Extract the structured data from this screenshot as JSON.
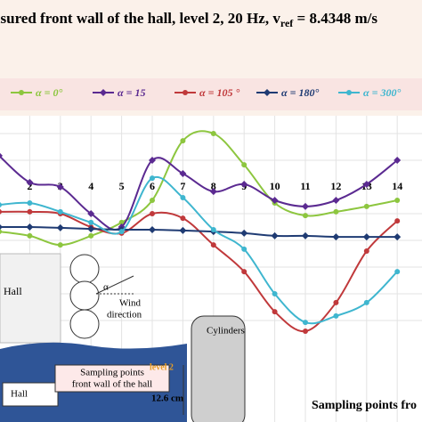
{
  "chart_data": {
    "type": "line",
    "title": "asured front wall of the hall, level 2, 20 Hz, v",
    "title_subscript": "ref",
    "title_end": " = 8.4348 m/s",
    "x_label": "Sampling points fro",
    "categories": [
      null,
      "2",
      "3",
      "4",
      "5",
      "6",
      "7",
      "8",
      "9",
      "10",
      "11",
      "12",
      "13",
      "14"
    ],
    "ylim": [
      0,
      10
    ],
    "grid": true,
    "series": [
      {
        "name": "α = 0°",
        "color": "#8dc63f",
        "marker": "circle",
        "values": [
          4.33,
          4.17,
          3.83,
          4.17,
          4.67,
          5.5,
          7.73,
          8,
          6.83,
          5.4,
          4.93,
          5.07,
          5.27,
          5.5
        ]
      },
      {
        "name": "α = 15",
        "color": "#5b2a91",
        "marker": "diamond",
        "values": [
          7.17,
          6.17,
          6,
          5,
          4.5,
          7,
          6.5,
          5.83,
          6.1,
          5.5,
          5.27,
          5.5,
          6.1,
          7
        ]
      },
      {
        "name": "α = 105 °",
        "color": "#c0393b",
        "marker": "circle",
        "values": [
          5.07,
          5.07,
          5,
          4.5,
          4.27,
          5,
          4.83,
          3.83,
          2.83,
          1.33,
          0.6,
          1.67,
          3.6,
          4.73
        ]
      },
      {
        "name": "α = 180°",
        "color": "#1f3b73",
        "marker": "diamond",
        "values": [
          4.5,
          4.5,
          4.47,
          4.43,
          4.4,
          4.4,
          4.37,
          4.33,
          4.27,
          4.17,
          4.17,
          4.13,
          4.13,
          4.13
        ]
      },
      {
        "name": "α = 300°",
        "color": "#3fb6cf",
        "marker": "circle",
        "values": [
          5.33,
          5.4,
          5.07,
          4.67,
          4.33,
          6.33,
          5.6,
          4.4,
          3.67,
          2,
          0.93,
          1.17,
          1.67,
          2.83
        ]
      }
    ]
  },
  "diagram": {
    "hall_top": "Hall",
    "alpha": "α",
    "wind": [
      "Wind",
      "direction"
    ],
    "cylinders": "Cylinders",
    "sampling": [
      "Sampling points",
      "front wall of the hall"
    ],
    "level": "level 2",
    "height": "12.6 cm",
    "hall_bottom": "Hall"
  }
}
